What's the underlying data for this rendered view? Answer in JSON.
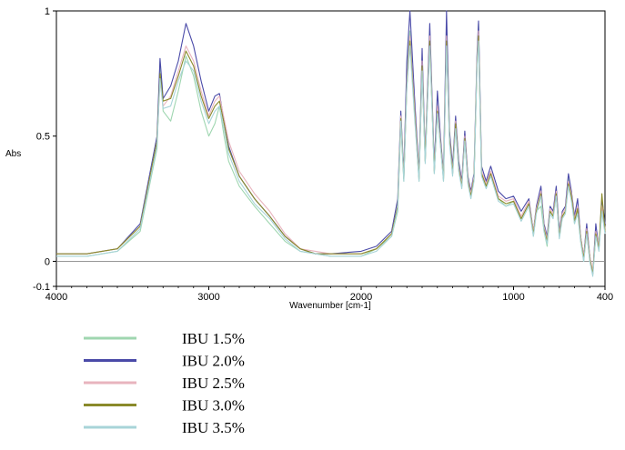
{
  "chart_data": {
    "type": "line",
    "xlabel": "Wavenumber [cm-1]",
    "ylabel": "Abs",
    "xlim": [
      4000,
      400
    ],
    "ylim": [
      -0.1,
      1
    ],
    "x_reversed": true,
    "x_ticks": [
      4000,
      3000,
      2000,
      1000,
      400
    ],
    "y_ticks": [
      1,
      0.5,
      0,
      -0.1
    ],
    "y_tick_labels": [
      "1",
      "0.5",
      "0",
      "-0.1"
    ],
    "legend_position": "bottom-left",
    "x": [
      4000,
      3800,
      3600,
      3450,
      3340,
      3320,
      3300,
      3250,
      3200,
      3150,
      3100,
      3050,
      3000,
      2960,
      2930,
      2900,
      2870,
      2800,
      2700,
      2600,
      2500,
      2400,
      2300,
      2200,
      2000,
      1900,
      1800,
      1760,
      1740,
      1720,
      1700,
      1680,
      1650,
      1620,
      1600,
      1580,
      1550,
      1520,
      1500,
      1480,
      1460,
      1440,
      1420,
      1400,
      1380,
      1360,
      1340,
      1320,
      1300,
      1280,
      1260,
      1240,
      1230,
      1210,
      1180,
      1150,
      1100,
      1050,
      1000,
      950,
      900,
      870,
      850,
      820,
      800,
      780,
      760,
      740,
      720,
      700,
      680,
      660,
      640,
      620,
      600,
      580,
      560,
      540,
      520,
      500,
      480,
      460,
      440,
      420,
      400
    ],
    "series": [
      {
        "name": "IBU 1.5%",
        "color": "#9fd6b0",
        "values": [
          0.02,
          0.02,
          0.04,
          0.12,
          0.45,
          0.8,
          0.6,
          0.56,
          0.68,
          0.82,
          0.74,
          0.6,
          0.5,
          0.55,
          0.62,
          0.5,
          0.4,
          0.3,
          0.22,
          0.15,
          0.08,
          0.04,
          0.03,
          0.02,
          0.02,
          0.05,
          0.1,
          0.2,
          0.55,
          0.32,
          0.75,
          0.92,
          0.6,
          0.32,
          0.78,
          0.4,
          0.9,
          0.35,
          0.62,
          0.48,
          0.32,
          0.92,
          0.48,
          0.35,
          0.55,
          0.38,
          0.3,
          0.5,
          0.32,
          0.26,
          0.33,
          0.8,
          0.95,
          0.35,
          0.3,
          0.35,
          0.25,
          0.22,
          0.24,
          0.17,
          0.23,
          0.1,
          0.2,
          0.22,
          0.12,
          0.06,
          0.2,
          0.18,
          0.27,
          0.1,
          0.18,
          0.2,
          0.33,
          0.25,
          0.15,
          0.2,
          0.08,
          0.0,
          0.12,
          0.0,
          -0.05,
          0.1,
          0.05,
          0.2,
          0.12
        ]
      },
      {
        "name": "IBU 2.0%",
        "color": "#4a4aa8",
        "values": [
          0.03,
          0.03,
          0.05,
          0.15,
          0.5,
          0.81,
          0.65,
          0.7,
          0.8,
          0.95,
          0.86,
          0.72,
          0.6,
          0.66,
          0.67,
          0.56,
          0.46,
          0.34,
          0.25,
          0.18,
          0.1,
          0.05,
          0.03,
          0.03,
          0.04,
          0.06,
          0.12,
          0.25,
          0.6,
          0.35,
          0.8,
          1.0,
          0.66,
          0.35,
          0.85,
          0.42,
          0.95,
          0.38,
          0.68,
          0.5,
          0.35,
          1.0,
          0.52,
          0.38,
          0.58,
          0.4,
          0.32,
          0.52,
          0.34,
          0.28,
          0.35,
          0.82,
          0.96,
          0.38,
          0.32,
          0.38,
          0.28,
          0.25,
          0.26,
          0.2,
          0.25,
          0.12,
          0.22,
          0.3,
          0.15,
          0.1,
          0.22,
          0.2,
          0.3,
          0.12,
          0.2,
          0.22,
          0.35,
          0.28,
          0.18,
          0.25,
          0.1,
          0.02,
          0.15,
          0.02,
          -0.05,
          0.15,
          0.05,
          0.25,
          0.15
        ]
      },
      {
        "name": "IBU 2.5%",
        "color": "#e8b4be",
        "values": [
          0.03,
          0.03,
          0.05,
          0.14,
          0.48,
          0.72,
          0.62,
          0.66,
          0.76,
          0.86,
          0.8,
          0.68,
          0.58,
          0.64,
          0.66,
          0.57,
          0.48,
          0.36,
          0.27,
          0.2,
          0.11,
          0.05,
          0.04,
          0.03,
          0.03,
          0.05,
          0.11,
          0.22,
          0.58,
          0.34,
          0.72,
          0.9,
          0.62,
          0.34,
          0.8,
          0.42,
          0.9,
          0.37,
          0.62,
          0.48,
          0.34,
          0.9,
          0.5,
          0.36,
          0.56,
          0.38,
          0.31,
          0.5,
          0.33,
          0.27,
          0.34,
          0.8,
          0.92,
          0.36,
          0.31,
          0.36,
          0.26,
          0.24,
          0.25,
          0.18,
          0.24,
          0.12,
          0.21,
          0.28,
          0.14,
          0.09,
          0.21,
          0.19,
          0.28,
          0.11,
          0.19,
          0.21,
          0.32,
          0.27,
          0.17,
          0.22,
          0.1,
          0.02,
          0.13,
          0.02,
          -0.04,
          0.12,
          0.06,
          0.22,
          0.13
        ]
      },
      {
        "name": "IBU 3.0%",
        "color": "#8a8a2a",
        "values": [
          0.03,
          0.03,
          0.05,
          0.14,
          0.48,
          0.75,
          0.64,
          0.65,
          0.74,
          0.84,
          0.78,
          0.66,
          0.57,
          0.62,
          0.64,
          0.55,
          0.45,
          0.34,
          0.25,
          0.18,
          0.1,
          0.05,
          0.03,
          0.03,
          0.03,
          0.05,
          0.11,
          0.22,
          0.57,
          0.33,
          0.7,
          0.88,
          0.6,
          0.33,
          0.78,
          0.4,
          0.88,
          0.36,
          0.6,
          0.47,
          0.33,
          0.88,
          0.49,
          0.35,
          0.55,
          0.37,
          0.3,
          0.49,
          0.32,
          0.26,
          0.33,
          0.78,
          0.9,
          0.35,
          0.3,
          0.35,
          0.25,
          0.23,
          0.24,
          0.17,
          0.23,
          0.11,
          0.2,
          0.27,
          0.13,
          0.08,
          0.2,
          0.18,
          0.27,
          0.1,
          0.18,
          0.2,
          0.31,
          0.26,
          0.16,
          0.21,
          0.09,
          0.01,
          0.12,
          0.01,
          -0.05,
          0.11,
          0.05,
          0.27,
          0.12
        ]
      },
      {
        "name": "IBU 3.5%",
        "color": "#a8d4d8",
        "values": [
          0.02,
          0.02,
          0.04,
          0.13,
          0.46,
          0.73,
          0.61,
          0.62,
          0.72,
          0.8,
          0.76,
          0.64,
          0.55,
          0.6,
          0.62,
          0.53,
          0.43,
          0.32,
          0.23,
          0.17,
          0.09,
          0.04,
          0.03,
          0.02,
          0.02,
          0.04,
          0.1,
          0.21,
          0.56,
          0.32,
          0.69,
          0.86,
          0.58,
          0.32,
          0.76,
          0.39,
          0.86,
          0.35,
          0.59,
          0.46,
          0.32,
          0.86,
          0.47,
          0.34,
          0.53,
          0.36,
          0.29,
          0.48,
          0.31,
          0.25,
          0.32,
          0.77,
          0.88,
          0.34,
          0.29,
          0.34,
          0.24,
          0.22,
          0.23,
          0.16,
          0.22,
          0.1,
          0.19,
          0.26,
          0.12,
          0.07,
          0.19,
          0.17,
          0.26,
          0.09,
          0.17,
          0.19,
          0.3,
          0.24,
          0.15,
          0.19,
          0.08,
          0.0,
          0.11,
          0.0,
          -0.06,
          0.1,
          0.04,
          0.2,
          0.11
        ]
      }
    ]
  }
}
